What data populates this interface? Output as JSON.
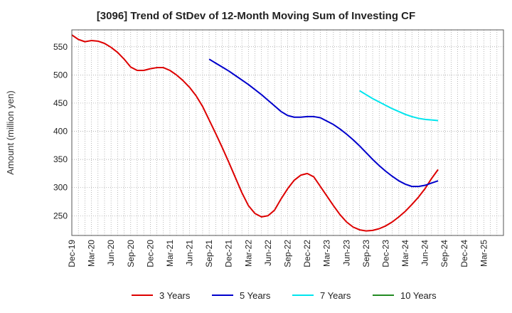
{
  "chart_data": {
    "type": "line",
    "title": "[3096]  Trend of StDev of 12-Month Moving Sum of Investing CF",
    "xlabel": "",
    "ylabel": "Amount (million yen)",
    "ylim": [
      215,
      580
    ],
    "yticks": [
      250,
      300,
      350,
      400,
      450,
      500,
      550
    ],
    "x_tick_labels": [
      "Dec-19",
      "Mar-20",
      "Jun-20",
      "Sep-20",
      "Dec-20",
      "Mar-21",
      "Jun-21",
      "Sep-21",
      "Dec-21",
      "Mar-22",
      "Jun-22",
      "Sep-22",
      "Dec-22",
      "Mar-23",
      "Jun-23",
      "Sep-23",
      "Dec-23",
      "Mar-24",
      "Jun-24",
      "Sep-24",
      "Dec-24",
      "Mar-25"
    ],
    "grid": true,
    "legend_position": "bottom",
    "series": [
      {
        "name": "3 Years",
        "color": "#dd0000",
        "values": [
          571,
          563,
          559,
          561,
          560,
          556,
          549,
          540,
          528,
          514,
          508,
          508,
          511,
          513,
          513,
          508,
          500,
          490,
          478,
          463,
          444,
          420,
          396,
          371,
          345,
          318,
          291,
          268,
          254,
          248,
          250,
          260,
          280,
          298,
          313,
          322,
          325,
          319,
          302,
          285,
          268,
          252,
          239,
          230,
          225,
          223,
          224,
          227,
          232,
          239,
          248,
          258,
          270,
          283,
          298,
          316,
          332
        ]
      },
      {
        "name": "5 Years",
        "color": "#0000cc",
        "values": [
          null,
          null,
          null,
          null,
          null,
          null,
          null,
          null,
          null,
          null,
          null,
          null,
          null,
          null,
          null,
          null,
          null,
          null,
          null,
          null,
          null,
          528,
          521,
          514,
          507,
          499,
          491,
          483,
          474,
          465,
          455,
          445,
          435,
          428,
          425,
          425,
          426,
          426,
          424,
          418,
          412,
          404,
          395,
          385,
          374,
          362,
          350,
          339,
          329,
          320,
          312,
          306,
          302,
          302,
          304,
          308,
          312
        ]
      },
      {
        "name": "7 Years",
        "color": "#00e5ee",
        "values": [
          null,
          null,
          null,
          null,
          null,
          null,
          null,
          null,
          null,
          null,
          null,
          null,
          null,
          null,
          null,
          null,
          null,
          null,
          null,
          null,
          null,
          null,
          null,
          null,
          null,
          null,
          null,
          null,
          null,
          null,
          null,
          null,
          null,
          null,
          null,
          null,
          null,
          null,
          null,
          null,
          null,
          null,
          null,
          null,
          472,
          465,
          458,
          452,
          446,
          440,
          435,
          430,
          426,
          423,
          421,
          420,
          419
        ]
      },
      {
        "name": "10 Years",
        "color": "#228b22",
        "values": []
      }
    ]
  }
}
